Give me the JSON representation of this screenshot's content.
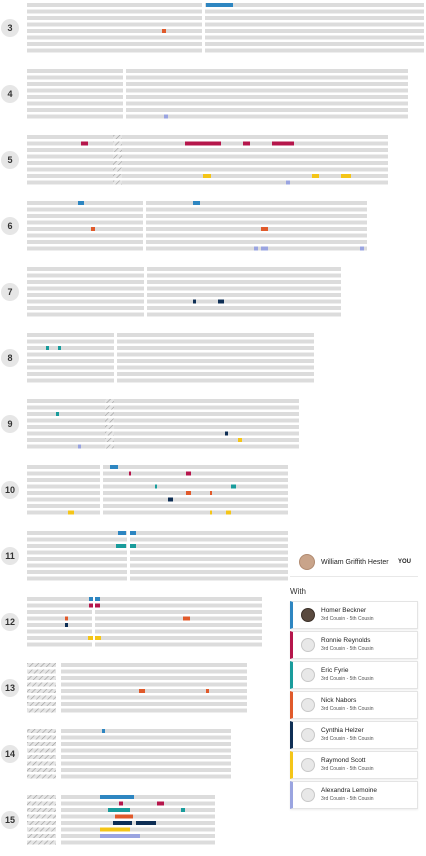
{
  "colors": {
    "bar": "#dcdcdc",
    "blue": "#2e86c1",
    "crimson": "#b5164b",
    "teal": "#1a9c9c",
    "orange": "#e05a2b",
    "navy": "#0f2f55",
    "yellow": "#f4c518",
    "lavender": "#9aa4e0"
  },
  "chromosomes": [
    {
      "label": "3",
      "hatch_left": false,
      "centromere_pinched": false
    },
    {
      "label": "4",
      "hatch_left": false,
      "centromere_pinched": false
    },
    {
      "label": "5",
      "hatch_left": false,
      "centromere_pinched": true
    },
    {
      "label": "6",
      "hatch_left": false,
      "centromere_pinched": false
    },
    {
      "label": "7",
      "hatch_left": false,
      "centromere_pinched": false
    },
    {
      "label": "8",
      "hatch_left": false,
      "centromere_pinched": false
    },
    {
      "label": "9",
      "hatch_left": false,
      "centromere_pinched": true
    },
    {
      "label": "10",
      "hatch_left": false,
      "centromere_pinched": false
    },
    {
      "label": "11",
      "hatch_left": false,
      "centromere_pinched": false
    },
    {
      "label": "12",
      "hatch_left": false,
      "centromere_pinched": false
    },
    {
      "label": "13",
      "hatch_left": true,
      "centromere_pinched": false
    },
    {
      "label": "14",
      "hatch_left": true,
      "centromere_pinched": false
    },
    {
      "label": "15",
      "hatch_left": true,
      "centromere_pinched": false
    }
  ],
  "panel": {
    "you": {
      "name": "William Griffith Hester",
      "tag": "YOU",
      "avatar_icon": "user-photo-icon"
    },
    "with_label": "With",
    "matches": [
      {
        "name": "Homer Beckner",
        "relationship": "3rd Cousin - 5th Cousin",
        "color": "#2e86c1",
        "photo": true
      },
      {
        "name": "Ronnie Reynolds",
        "relationship": "3rd Cousin - 5th Cousin",
        "color": "#b5164b",
        "photo": false
      },
      {
        "name": "Eric Fyrie",
        "relationship": "3rd Cousin - 5th Cousin",
        "color": "#1a9c9c",
        "photo": false
      },
      {
        "name": "Nick Nabors",
        "relationship": "3rd Cousin - 5th Cousin",
        "color": "#e05a2b",
        "photo": false
      },
      {
        "name": "Cynthia Helzer",
        "relationship": "3rd Cousin - 5th Cousin",
        "color": "#0f2f55",
        "photo": false
      },
      {
        "name": "Raymond Scott",
        "relationship": "3rd Cousin - 5th Cousin",
        "color": "#f4c518",
        "photo": false
      },
      {
        "name": "Alexandra Lemoine",
        "relationship": "3rd Cousin - 5th Cousin",
        "color": "#9aa4e0",
        "photo": false
      }
    ]
  }
}
